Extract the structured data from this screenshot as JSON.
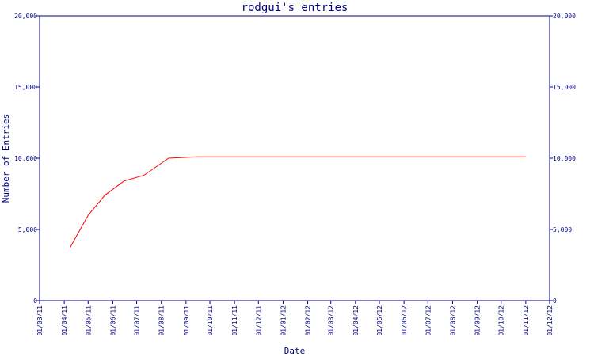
{
  "chart_data": {
    "type": "line",
    "title": "rodgui's entries",
    "xlabel": "Date",
    "ylabel": "Number of Entries",
    "ylim": [
      0,
      20000
    ],
    "y_ticks": [
      "0",
      "5,000",
      "10,000",
      "15,000",
      "20,000"
    ],
    "y_tick_values": [
      0,
      5000,
      10000,
      15000,
      20000
    ],
    "x_ticks": [
      "01/03/11",
      "01/04/11",
      "01/05/11",
      "01/06/11",
      "01/07/11",
      "01/08/11",
      "01/09/11",
      "01/10/11",
      "01/11/11",
      "01/12/11",
      "01/01/12",
      "01/02/12",
      "01/03/12",
      "01/04/12",
      "01/05/12",
      "01/06/12",
      "01/07/12",
      "01/08/12",
      "01/09/12",
      "01/10/12",
      "01/11/12",
      "01/12/12"
    ],
    "grid": false,
    "right_axis": true,
    "colors": {
      "line": "#ff0000",
      "axis": "#000080",
      "text": "#000080"
    },
    "series": [
      {
        "x": [
          "2011-04-08",
          "2011-05-01",
          "2011-05-22",
          "2011-06-15",
          "2011-07-10",
          "2011-08-10",
          "2011-08-28",
          "2011-09-15",
          "2011-10-15",
          "2011-11-15",
          "2011-12-15",
          "2012-01-15",
          "2012-02-15",
          "2012-03-15",
          "2012-04-15",
          "2012-05-15",
          "2012-06-15",
          "2012-07-15",
          "2012-08-15",
          "2012-09-15",
          "2012-10-15",
          "2012-11-01"
        ],
        "y": [
          3700,
          6000,
          7400,
          8400,
          8800,
          10000,
          10050,
          10100,
          10100,
          10100,
          10100,
          10100,
          10100,
          10100,
          10100,
          10100,
          10100,
          10100,
          10100,
          10100,
          10100,
          10100
        ]
      }
    ]
  }
}
